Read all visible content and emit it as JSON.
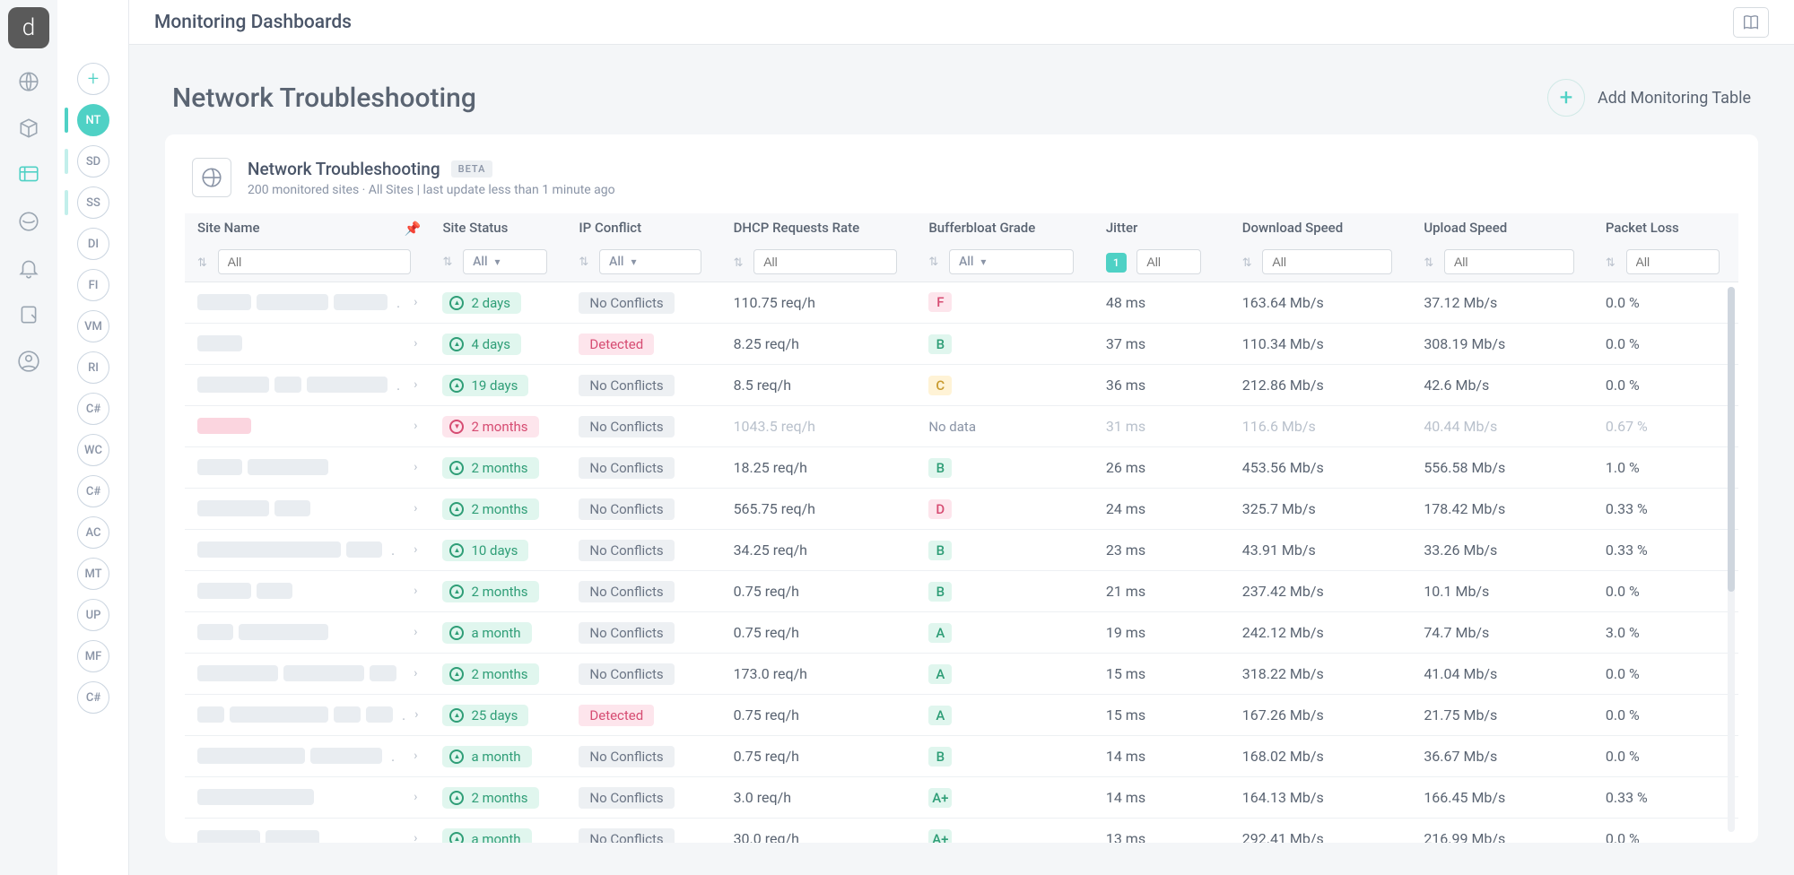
{
  "topbar": {
    "title": "Monitoring Dashboards"
  },
  "avatars": {
    "items": [
      {
        "initials": "NT",
        "active": true
      },
      {
        "initials": "SD"
      },
      {
        "initials": "SS"
      },
      {
        "initials": "DI"
      },
      {
        "initials": "FI"
      },
      {
        "initials": "VM"
      },
      {
        "initials": "RI"
      },
      {
        "initials": "C#"
      },
      {
        "initials": "WC"
      },
      {
        "initials": "C#"
      },
      {
        "initials": "AC"
      },
      {
        "initials": "MT"
      },
      {
        "initials": "UP"
      },
      {
        "initials": "MF"
      },
      {
        "initials": "C#"
      }
    ]
  },
  "page": {
    "title": "Network Troubleshooting",
    "add_button": "Add Monitoring Table"
  },
  "card": {
    "title": "Network Troubleshooting",
    "badge": "BETA",
    "subtitle": "200 monitored sites · All Sites | last update less than 1 minute ago"
  },
  "filters": {
    "placeholder": "All",
    "status_sel": "All",
    "ip_sel": "All",
    "buf_sel": "All",
    "jitter_active": "1"
  },
  "columns": {
    "name": "Site Name",
    "status": "Site Status",
    "ip": "IP Conflict",
    "dhcp": "DHCP Requests Rate",
    "buf": "Bufferbloat Grade",
    "jitter": "Jitter",
    "dl": "Download Speed",
    "ul": "Upload Speed",
    "pl": "Packet Loss"
  },
  "ip_text": {
    "ok": "No Conflicts",
    "bad": "Detected"
  },
  "grade_text": {
    "Ap": "A+",
    "A": "A",
    "B": "B",
    "C": "C",
    "D": "D",
    "F": "F",
    "nodata": "No data"
  },
  "rows": [
    {
      "status": "up",
      "status_lbl": "2 days",
      "ip": "ok",
      "dhcp": "110.75 req/h",
      "grade": "F",
      "jitter": "48 ms",
      "dl": "163.64 Mb/s",
      "ul": "37.12 Mb/s",
      "pl": "0.0 %",
      "blurs": [
        60,
        80,
        60
      ],
      "dots": true
    },
    {
      "status": "up",
      "status_lbl": "4 days",
      "ip": "bad",
      "dhcp": "8.25 req/h",
      "grade": "B",
      "jitter": "37 ms",
      "dl": "110.34 Mb/s",
      "ul": "308.19 Mb/s",
      "pl": "0.0 %",
      "blurs": [
        50
      ]
    },
    {
      "status": "up",
      "status_lbl": "19 days",
      "ip": "ok",
      "dhcp": "8.5 req/h",
      "grade": "C",
      "jitter": "36 ms",
      "dl": "212.86 Mb/s",
      "ul": "42.6 Mb/s",
      "pl": "0.0 %",
      "blurs": [
        80,
        30,
        90
      ],
      "dots": true
    },
    {
      "status": "down",
      "status_lbl": "2 months",
      "ip": "ok",
      "dhcp": "1043.5 req/h",
      "grade": "nodata",
      "jitter": "31 ms",
      "dl": "116.6 Mb/s",
      "ul": "40.44 Mb/s",
      "pl": "0.67 %",
      "blurs": [
        60
      ],
      "red": true,
      "dim": true
    },
    {
      "status": "up",
      "status_lbl": "2 months",
      "ip": "ok",
      "dhcp": "18.25 req/h",
      "grade": "B",
      "jitter": "26 ms",
      "dl": "453.56 Mb/s",
      "ul": "556.58 Mb/s",
      "pl": "1.0 %",
      "blurs": [
        50,
        90
      ]
    },
    {
      "status": "up",
      "status_lbl": "2 months",
      "ip": "ok",
      "dhcp": "565.75 req/h",
      "grade": "D",
      "jitter": "24 ms",
      "dl": "325.7 Mb/s",
      "ul": "178.42 Mb/s",
      "pl": "0.33 %",
      "blurs": [
        80,
        40
      ]
    },
    {
      "status": "up",
      "status_lbl": "10 days",
      "ip": "ok",
      "dhcp": "34.25 req/h",
      "grade": "B",
      "jitter": "23 ms",
      "dl": "43.91 Mb/s",
      "ul": "33.26 Mb/s",
      "pl": "0.33 %",
      "blurs": [
        160,
        40
      ],
      "dots": true
    },
    {
      "status": "up",
      "status_lbl": "2 months",
      "ip": "ok",
      "dhcp": "0.75 req/h",
      "grade": "B",
      "jitter": "21 ms",
      "dl": "237.42 Mb/s",
      "ul": "10.1 Mb/s",
      "pl": "0.0 %",
      "blurs": [
        60,
        40
      ]
    },
    {
      "status": "up",
      "status_lbl": "a month",
      "ip": "ok",
      "dhcp": "0.75 req/h",
      "grade": "A",
      "jitter": "19 ms",
      "dl": "242.12 Mb/s",
      "ul": "74.7 Mb/s",
      "pl": "3.0 %",
      "blurs": [
        40,
        100
      ]
    },
    {
      "status": "up",
      "status_lbl": "2 months",
      "ip": "ok",
      "dhcp": "173.0 req/h",
      "grade": "A",
      "jitter": "15 ms",
      "dl": "318.22 Mb/s",
      "ul": "41.04 Mb/s",
      "pl": "0.0 %",
      "blurs": [
        90,
        90,
        30
      ]
    },
    {
      "status": "up",
      "status_lbl": "25 days",
      "ip": "bad",
      "dhcp": "0.75 req/h",
      "grade": "A",
      "jitter": "15 ms",
      "dl": "167.26 Mb/s",
      "ul": "21.75 Mb/s",
      "pl": "0.0 %",
      "blurs": [
        30,
        110,
        30,
        30
      ],
      "dots": true
    },
    {
      "status": "up",
      "status_lbl": "a month",
      "ip": "ok",
      "dhcp": "0.75 req/h",
      "grade": "B",
      "jitter": "14 ms",
      "dl": "168.02 Mb/s",
      "ul": "36.67 Mb/s",
      "pl": "0.0 %",
      "blurs": [
        120,
        80
      ],
      "dots": true
    },
    {
      "status": "up",
      "status_lbl": "2 months",
      "ip": "ok",
      "dhcp": "3.0 req/h",
      "grade": "Ap",
      "jitter": "14 ms",
      "dl": "164.13 Mb/s",
      "ul": "166.45 Mb/s",
      "pl": "0.33 %",
      "blurs": [
        130
      ]
    },
    {
      "status": "up",
      "status_lbl": "a month",
      "ip": "ok",
      "dhcp": "30.0 req/h",
      "grade": "Ap",
      "jitter": "13 ms",
      "dl": "292.41 Mb/s",
      "ul": "216.99 Mb/s",
      "pl": "0.0 %",
      "blurs": [
        70,
        60
      ]
    }
  ]
}
